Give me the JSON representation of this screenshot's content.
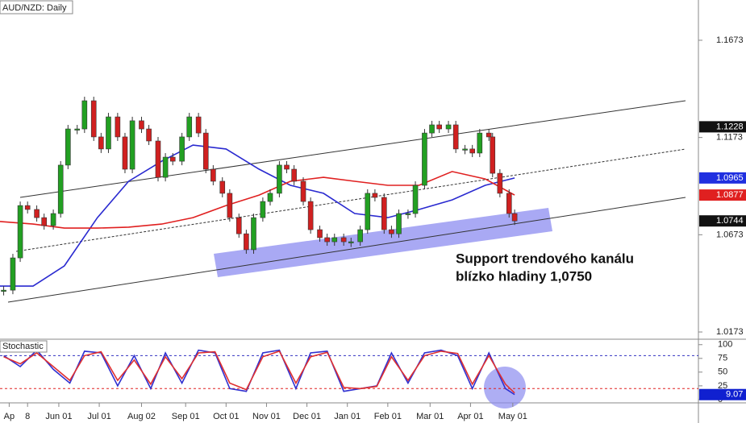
{
  "chart_data": {
    "type": "candlestick",
    "title": "AUD/NZD: Daily",
    "annotation": [
      "Support trendového kanálu",
      "blízko hladiny 1,0750"
    ],
    "xlim": [
      0,
      380
    ],
    "ylim": [
      1.014,
      1.188
    ],
    "xticks": [
      {
        "value": 5,
        "label": "Ap"
      },
      {
        "value": 15,
        "label": "8"
      },
      {
        "value": 32,
        "label": "Jun 01"
      },
      {
        "value": 54,
        "label": "Jul 01"
      },
      {
        "value": 77,
        "label": "Aug 02"
      },
      {
        "value": 101,
        "label": "Sep 01"
      },
      {
        "value": 123,
        "label": "Oct 01"
      },
      {
        "value": 145,
        "label": "Nov 01"
      },
      {
        "value": 167,
        "label": "Dec 01"
      },
      {
        "value": 189,
        "label": "Jan 01"
      },
      {
        "value": 211,
        "label": "Feb 01"
      },
      {
        "value": 234,
        "label": "Mar 01"
      },
      {
        "value": 256,
        "label": "Apr 01"
      },
      {
        "value": 279,
        "label": "May 01"
      }
    ],
    "yticks": [
      1.0173,
      1.0673,
      1.1173,
      1.1673
    ],
    "up_color": "#22a022",
    "down_color": "#d02020",
    "x": [
      2,
      7,
      11,
      15,
      20,
      24,
      29,
      33,
      37,
      42,
      46,
      51,
      55,
      59,
      64,
      68,
      72,
      77,
      81,
      86,
      90,
      94,
      99,
      103,
      108,
      112,
      116,
      121,
      125,
      130,
      134,
      138,
      143,
      147,
      152,
      156,
      160,
      165,
      169,
      174,
      178,
      182,
      187,
      191,
      196,
      200,
      204,
      209,
      213,
      217,
      222,
      226,
      231,
      235,
      239,
      244,
      248,
      253,
      257,
      261,
      266,
      268,
      272,
      277,
      280
    ],
    "close": [
      1.0388,
      1.0554,
      1.0823,
      1.0803,
      1.0761,
      1.072,
      1.0782,
      1.1031,
      1.1217,
      1.1217,
      1.1362,
      1.1176,
      1.1114,
      1.1279,
      1.1176,
      1.101,
      1.1259,
      1.1217,
      1.1155,
      1.0968,
      1.1072,
      1.1051,
      1.1176,
      1.1279,
      1.1196,
      1.101,
      1.0948,
      1.0886,
      1.0761,
      1.0678,
      1.0596,
      1.0761,
      1.0844,
      1.0886,
      1.1031,
      1.101,
      1.0948,
      1.0844,
      1.0699,
      1.0658,
      1.0637,
      1.0658,
      1.0637,
      1.0637,
      1.0699,
      1.0886,
      1.0865,
      1.0699,
      1.0678,
      1.0782,
      1.0782,
      1.0927,
      1.1196,
      1.1238,
      1.1217,
      1.1238,
      1.1114,
      1.1114,
      1.1093,
      1.1196,
      1.1176,
      1.0989,
      1.0886,
      1.0782,
      1.0744
    ],
    "series": [
      {
        "name": "MA blue",
        "color": "#2a2ad0",
        "x": [
          0,
          18,
          35,
          53,
          70,
          88,
          105,
          123,
          141,
          158,
          176,
          193,
          211,
          228,
          246,
          264,
          280
        ],
        "values": [
          1.0409,
          1.0409,
          1.0513,
          1.0761,
          1.0948,
          1.1051,
          1.1134,
          1.1114,
          1.101,
          1.0927,
          1.0886,
          1.0782,
          1.0761,
          1.0803,
          1.0852,
          1.0927,
          1.0965
        ]
      },
      {
        "name": "MA red",
        "color": "#e02020",
        "x": [
          0,
          18,
          35,
          53,
          70,
          88,
          105,
          123,
          141,
          158,
          176,
          193,
          211,
          228,
          246,
          264,
          280
        ],
        "values": [
          1.0741,
          1.0728,
          1.0707,
          1.0707,
          1.0712,
          1.0728,
          1.0761,
          1.0823,
          1.0877,
          1.0948,
          1.0968,
          1.0948,
          1.0927,
          1.0927,
          1.0998,
          1.096,
          1.0877
        ]
      }
    ],
    "price_markers": [
      {
        "value": 1.1228,
        "color": "#111111"
      },
      {
        "value": 1.0965,
        "color": "#2030e0"
      },
      {
        "value": 1.0877,
        "color": "#e02020"
      },
      {
        "value": 1.0744,
        "color": "#111111"
      }
    ],
    "stochastic": {
      "title": "Stochastic",
      "ylim": [
        -6,
        107
      ],
      "yticks": [
        100,
        75,
        50,
        25,
        0
      ],
      "levels": [
        {
          "value": 80,
          "color": "#3030c0"
        },
        {
          "value": 20,
          "color": "#e02020"
        }
      ],
      "x": [
        2,
        11,
        20,
        29,
        38,
        46,
        55,
        64,
        73,
        82,
        90,
        99,
        108,
        117,
        125,
        134,
        143,
        152,
        161,
        169,
        178,
        187,
        196,
        205,
        213,
        222,
        231,
        240,
        249,
        257,
        266,
        275,
        280
      ],
      "series": [
        {
          "name": "%K",
          "color": "#3030d0",
          "values": [
            80,
            60,
            90,
            55,
            30,
            88,
            85,
            25,
            80,
            20,
            85,
            30,
            90,
            85,
            20,
            15,
            85,
            90,
            20,
            85,
            88,
            15,
            20,
            25,
            85,
            30,
            85,
            90,
            80,
            20,
            85,
            20,
            9.07
          ]
        },
        {
          "name": "%D",
          "color": "#e03030",
          "values": [
            78,
            65,
            85,
            60,
            35,
            80,
            87,
            35,
            72,
            28,
            78,
            38,
            85,
            87,
            30,
            18,
            78,
            88,
            30,
            78,
            86,
            22,
            20,
            24,
            78,
            35,
            80,
            88,
            84,
            28,
            80,
            28,
            12
          ]
        }
      ]
    }
  }
}
